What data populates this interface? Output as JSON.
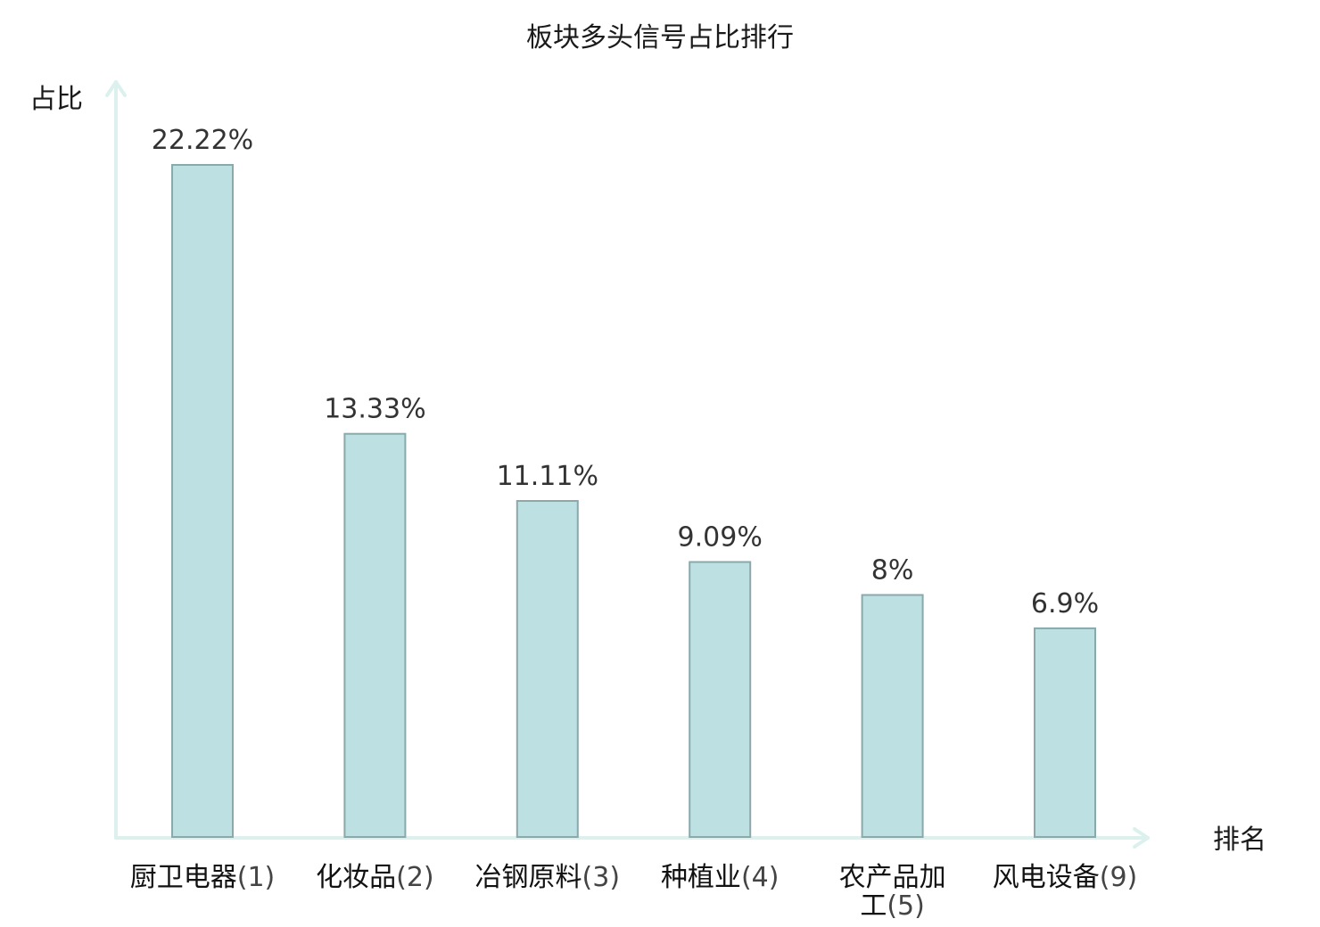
{
  "chart_data": {
    "type": "bar",
    "title": "板块多头信号占比排行",
    "xlabel": "排名",
    "ylabel": "占比",
    "categories": [
      {
        "name": "厨卫电器",
        "rank": "(1)",
        "highlight": false
      },
      {
        "name": "化妆品",
        "rank": "(2)",
        "highlight": false
      },
      {
        "name": "冶钢原料",
        "rank": "(3)",
        "highlight": false
      },
      {
        "name": "种植业",
        "rank": "(4)",
        "highlight": false
      },
      {
        "name": "农产品加",
        "name_line2": "工",
        "rank": "(5)",
        "highlight": false
      },
      {
        "name": "风电设备",
        "rank": "(9)",
        "highlight": true
      }
    ],
    "values": [
      22.22,
      13.33,
      11.11,
      9.09,
      8,
      6.9
    ],
    "value_labels": [
      "22.22%",
      "13.33%",
      "11.11%",
      "9.09%",
      "8%",
      "6.9%"
    ],
    "ylim": [
      0,
      25
    ],
    "grid": false,
    "legend": "none",
    "colors": {
      "bar_fill": "#bde0e3",
      "bar_stroke": "#8aa9ab",
      "axis": "#dcf1ee",
      "highlight_text": "#e02020"
    }
  }
}
